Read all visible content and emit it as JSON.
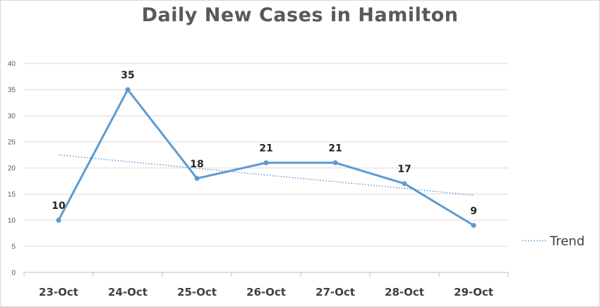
{
  "chart_data": {
    "type": "line",
    "title": "Daily New Cases in Hamilton",
    "xlabel": "",
    "ylabel": "",
    "categories": [
      "23-Oct",
      "24-Oct",
      "25-Oct",
      "26-Oct",
      "27-Oct",
      "28-Oct",
      "29-Oct"
    ],
    "series": [
      {
        "values": [
          10,
          35,
          18,
          21,
          21,
          17,
          9
        ],
        "color": "#5b9bd5"
      }
    ],
    "trend": {
      "name": "Trend",
      "values": [
        22.5,
        14.8
      ],
      "color": "#5b9bd5",
      "style": "dotted"
    },
    "ylim": [
      0,
      40
    ],
    "yticks": [
      0,
      5,
      10,
      15,
      20,
      25,
      30,
      35,
      40
    ],
    "grid": true,
    "legend": "right"
  }
}
